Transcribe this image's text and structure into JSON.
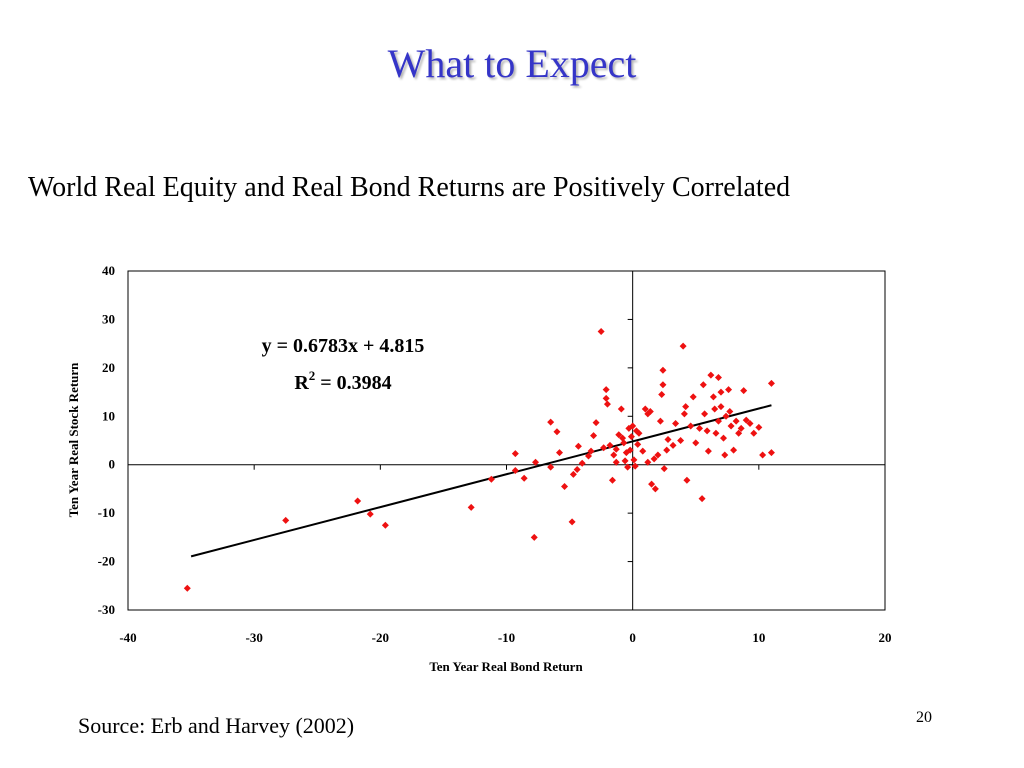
{
  "slide": {
    "title": "What to Expect",
    "subtitle": "World Real Equity and Real Bond Returns are Positively Correlated",
    "source": "Source: Erb and Harvey (2002)",
    "page_number": "20"
  },
  "colors": {
    "title": "#3535c8",
    "points": "#ee1111",
    "trendline": "#000000"
  },
  "chart_data": {
    "type": "scatter",
    "xlabel": "Ten Year Real Bond Return",
    "ylabel": "Ten Year Real Stock Return",
    "xlim": [
      -40,
      20
    ],
    "ylim": [
      -30,
      40
    ],
    "xticks": [
      -40,
      -30,
      -20,
      -10,
      0,
      10,
      20
    ],
    "yticks": [
      -30,
      -20,
      -10,
      0,
      10,
      20,
      30,
      40
    ],
    "grid": false,
    "equation_label": "y = 0.6783x + 4.815",
    "r2_label_prefix": "R",
    "r2_label_sup": "2",
    "r2_label_suffix": " = 0.3984",
    "trendline": {
      "slope": 0.6783,
      "intercept": 4.815,
      "x_range": [
        -35,
        11
      ]
    },
    "points": [
      [
        -35.3,
        -25.5
      ],
      [
        -27.5,
        -11.5
      ],
      [
        -21.8,
        -7.5
      ],
      [
        -20.8,
        -10.2
      ],
      [
        -19.6,
        -12.5
      ],
      [
        -12.8,
        -8.8
      ],
      [
        -11.2,
        -3.0
      ],
      [
        -9.3,
        2.3
      ],
      [
        -9.3,
        -1.2
      ],
      [
        -8.6,
        -2.8
      ],
      [
        -7.8,
        -15.0
      ],
      [
        -7.7,
        0.5
      ],
      [
        -6.5,
        8.8
      ],
      [
        -6.5,
        -0.5
      ],
      [
        -6.0,
        6.8
      ],
      [
        -5.8,
        2.5
      ],
      [
        -5.4,
        -4.5
      ],
      [
        -4.8,
        -11.8
      ],
      [
        -4.7,
        -2.0
      ],
      [
        -4.4,
        -1.0
      ],
      [
        -4.3,
        3.8
      ],
      [
        -4.0,
        0.3
      ],
      [
        -3.5,
        1.8
      ],
      [
        -3.3,
        2.8
      ],
      [
        -3.1,
        6.0
      ],
      [
        -2.9,
        8.7
      ],
      [
        -2.5,
        27.5
      ],
      [
        -2.3,
        3.5
      ],
      [
        -2.1,
        15.5
      ],
      [
        -2.1,
        13.7
      ],
      [
        -2.0,
        12.5
      ],
      [
        -1.8,
        4.0
      ],
      [
        -1.6,
        -3.2
      ],
      [
        -1.5,
        2.0
      ],
      [
        -1.3,
        3.2
      ],
      [
        -1.3,
        0.5
      ],
      [
        -1.1,
        6.2
      ],
      [
        -0.9,
        11.5
      ],
      [
        -0.8,
        5.5
      ],
      [
        -0.7,
        4.5
      ],
      [
        -0.6,
        0.8
      ],
      [
        -0.5,
        2.5
      ],
      [
        -0.4,
        -0.5
      ],
      [
        -0.3,
        7.5
      ],
      [
        -0.2,
        3.0
      ],
      [
        -0.1,
        5.8
      ],
      [
        0.0,
        8.0
      ],
      [
        0.1,
        1.0
      ],
      [
        0.2,
        -0.3
      ],
      [
        0.3,
        7.0
      ],
      [
        0.4,
        4.2
      ],
      [
        0.5,
        6.5
      ],
      [
        0.8,
        2.8
      ],
      [
        1.0,
        11.5
      ],
      [
        1.2,
        10.5
      ],
      [
        1.2,
        0.5
      ],
      [
        1.4,
        11.0
      ],
      [
        1.5,
        -4.0
      ],
      [
        1.7,
        1.2
      ],
      [
        1.8,
        -5.0
      ],
      [
        2.0,
        2.0
      ],
      [
        2.2,
        9.0
      ],
      [
        2.3,
        14.5
      ],
      [
        2.4,
        19.5
      ],
      [
        2.4,
        16.5
      ],
      [
        2.5,
        -0.8
      ],
      [
        2.7,
        3.0
      ],
      [
        2.8,
        5.2
      ],
      [
        3.2,
        4.0
      ],
      [
        3.4,
        8.5
      ],
      [
        3.8,
        5.0
      ],
      [
        4.0,
        24.5
      ],
      [
        4.1,
        10.5
      ],
      [
        4.2,
        12.0
      ],
      [
        4.3,
        -3.2
      ],
      [
        4.6,
        8.0
      ],
      [
        4.8,
        14.0
      ],
      [
        5.0,
        4.5
      ],
      [
        5.3,
        7.5
      ],
      [
        5.5,
        -7.0
      ],
      [
        5.6,
        16.5
      ],
      [
        5.7,
        10.5
      ],
      [
        5.9,
        7.0
      ],
      [
        6.0,
        2.8
      ],
      [
        6.2,
        18.5
      ],
      [
        6.4,
        14.0
      ],
      [
        6.5,
        11.5
      ],
      [
        6.6,
        6.5
      ],
      [
        6.8,
        18.0
      ],
      [
        6.8,
        9.0
      ],
      [
        7.0,
        15.0
      ],
      [
        7.0,
        12.0
      ],
      [
        7.2,
        5.5
      ],
      [
        7.3,
        2.0
      ],
      [
        7.4,
        10.0
      ],
      [
        7.6,
        15.5
      ],
      [
        7.7,
        11.0
      ],
      [
        7.8,
        8.0
      ],
      [
        8.0,
        3.0
      ],
      [
        8.2,
        9.0
      ],
      [
        8.4,
        6.5
      ],
      [
        8.6,
        7.5
      ],
      [
        8.8,
        15.3
      ],
      [
        9.0,
        9.2
      ],
      [
        9.3,
        8.5
      ],
      [
        9.6,
        6.5
      ],
      [
        10.0,
        7.7
      ],
      [
        10.3,
        2.0
      ],
      [
        11.0,
        2.5
      ],
      [
        11.0,
        16.8
      ]
    ]
  }
}
